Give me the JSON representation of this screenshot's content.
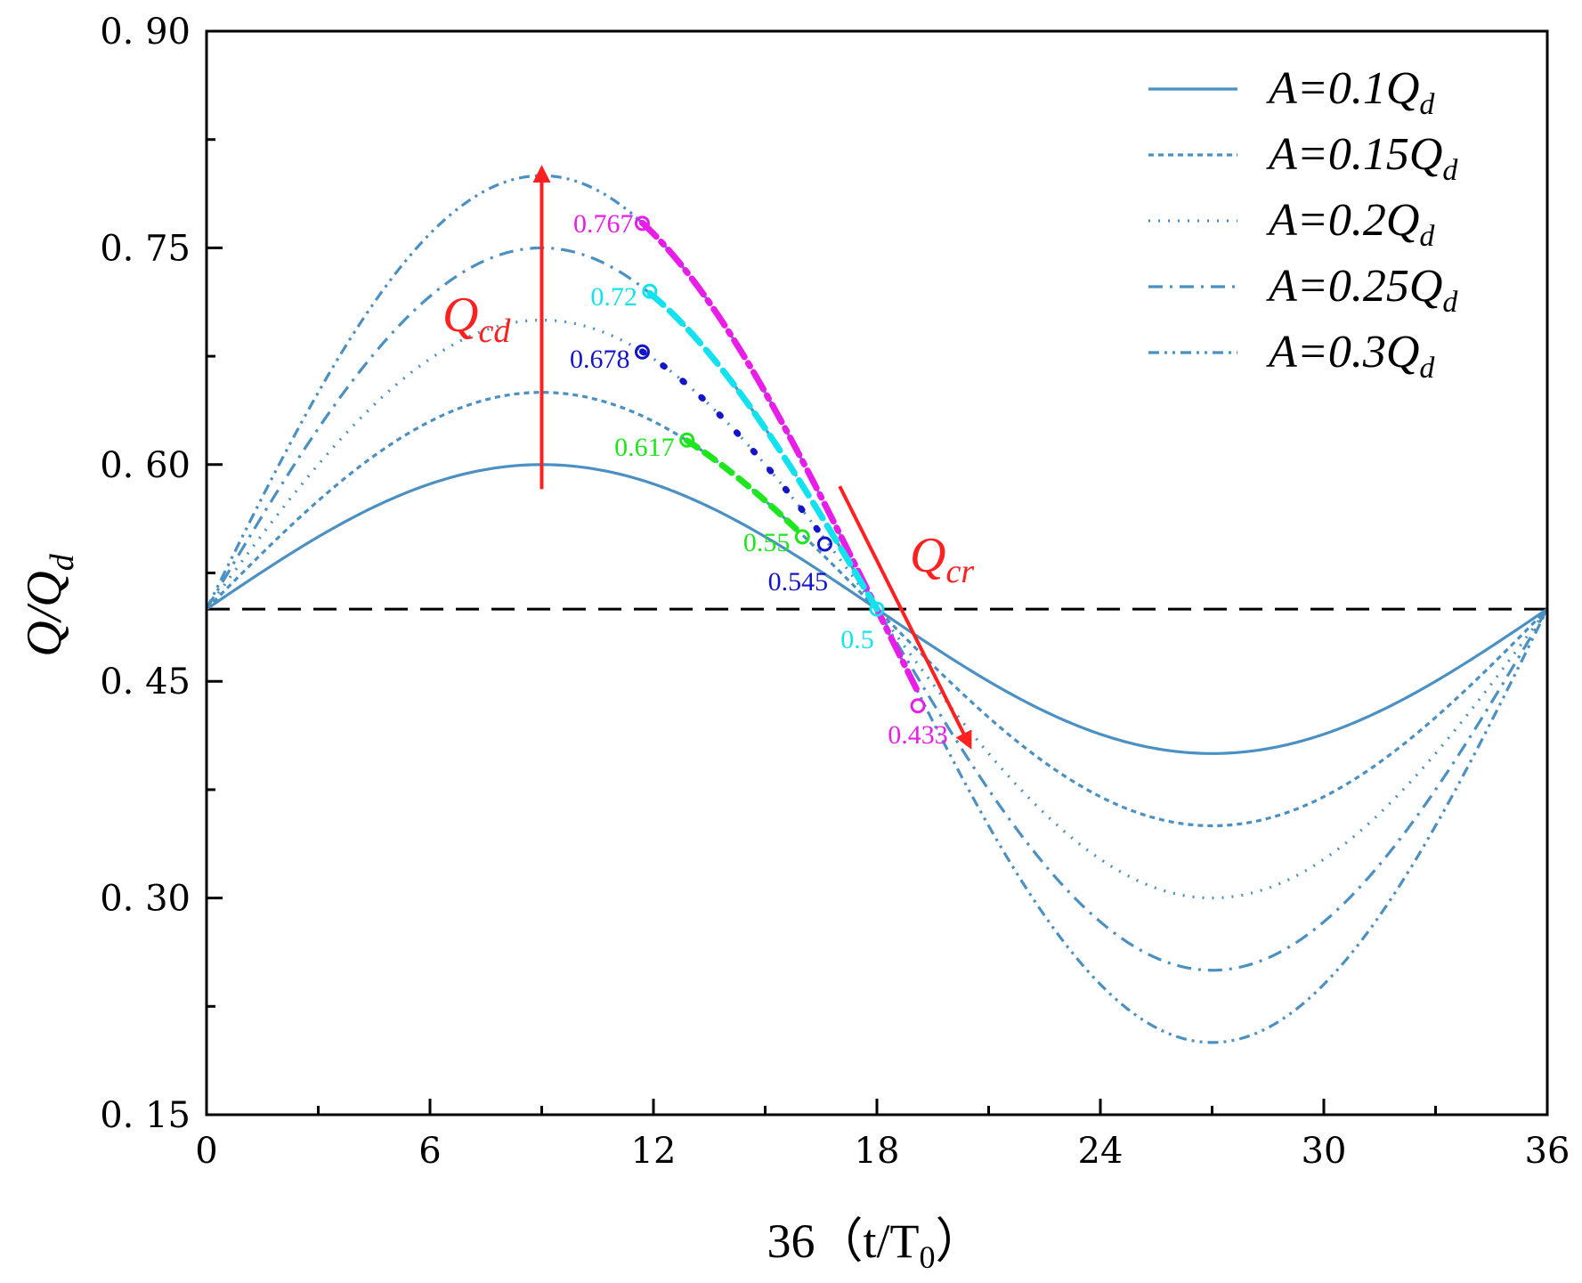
{
  "chart_data": {
    "type": "line",
    "xlabel": "36（t/T",
    "xlabel_sub": "0",
    "xlabel_end": "）",
    "ylabel": "Q/Q",
    "ylabel_sub": "d",
    "xlim": [
      0,
      36
    ],
    "ylim": [
      0.15,
      0.9
    ],
    "xticks": [
      0,
      6,
      12,
      18,
      24,
      30,
      36
    ],
    "xtick_labels": [
      "0",
      "6",
      "12",
      "18",
      "24",
      "30",
      "36"
    ],
    "yticks": [
      0.15,
      0.3,
      0.45,
      0.6,
      0.75,
      0.9
    ],
    "ytick_labels": [
      "0. 15",
      "0. 30",
      "0. 45",
      "0. 60",
      "0. 75",
      "0. 90"
    ],
    "x_minor_step": 3,
    "y_minor_step": 0.075,
    "baseline": 0.5,
    "period": 36,
    "legend_position": "top-right",
    "series_color": "#4a90c2",
    "series": [
      {
        "name": "A=0.1Q",
        "sub": "d",
        "amplitude": 0.1,
        "dash": ""
      },
      {
        "name": "A=0.15Q",
        "sub": "d",
        "amplitude": 0.15,
        "dash": "6 5"
      },
      {
        "name": "A=0.2Q",
        "sub": "d",
        "amplitude": 0.2,
        "dash": "2 9"
      },
      {
        "name": "A=0.25Q",
        "sub": "d",
        "amplitude": 0.25,
        "dash": "16 8 3 8"
      },
      {
        "name": "A=0.3Q",
        "sub": "d",
        "amplitude": 0.3,
        "dash": "12 6 3 6 3 6"
      }
    ],
    "highlight_segments": [
      {
        "amplitude": 0.3,
        "color": "#e81ee8",
        "start": {
          "x": 11.7,
          "y": 0.767,
          "label": "0.767"
        },
        "end": {
          "x": 19.1,
          "y": 0.433,
          "label": "0.433"
        },
        "dash": "22 8 4 8"
      },
      {
        "amplitude": 0.25,
        "color": "#12e2ee",
        "start": {
          "x": 11.9,
          "y": 0.72,
          "label": "0.72"
        },
        "end": {
          "x": 18.0,
          "y": 0.5,
          "label": "0.5"
        },
        "dash": "20 10"
      },
      {
        "amplitude": 0.2,
        "color": "#1414c8",
        "start": {
          "x": 11.7,
          "y": 0.678,
          "label": "0.678"
        },
        "end": {
          "x": 16.6,
          "y": 0.545,
          "label": "0.545"
        },
        "dash": "2 26"
      },
      {
        "amplitude": 0.15,
        "color": "#1ee61e",
        "start": {
          "x": 12.9,
          "y": 0.617,
          "label": "0.617"
        },
        "end": {
          "x": 16.0,
          "y": 0.55,
          "label": "0.55"
        },
        "dash": "14 10"
      }
    ],
    "arrows": [
      {
        "label": "Q",
        "sub": "cd",
        "from": {
          "x": 9.0,
          "y": 0.583
        },
        "to": {
          "x": 9.0,
          "y": 0.805
        }
      },
      {
        "label": "Q",
        "sub": "cr",
        "from": {
          "x": 17.0,
          "y": 0.585
        },
        "to": {
          "x": 20.5,
          "y": 0.405
        }
      }
    ],
    "annotation_color": "#ff2020"
  }
}
